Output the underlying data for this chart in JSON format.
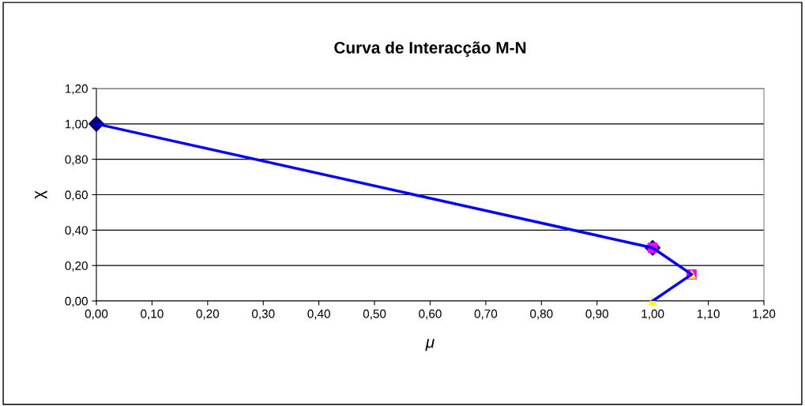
{
  "chart_data": {
    "type": "line",
    "title": "Curva de Interacção M-N",
    "xlabel": "μ",
    "ylabel": "χ",
    "xlim": [
      0,
      1.2
    ],
    "ylim": [
      0,
      1.2
    ],
    "xticks": [
      {
        "value": 0,
        "label": "0,00"
      },
      {
        "value": 0.1,
        "label": "0,10"
      },
      {
        "value": 0.2,
        "label": "0,20"
      },
      {
        "value": 0.3,
        "label": "0,30"
      },
      {
        "value": 0.4,
        "label": "0,40"
      },
      {
        "value": 0.5,
        "label": "0,50"
      },
      {
        "value": 0.6,
        "label": "0,60"
      },
      {
        "value": 0.7,
        "label": "0,70"
      },
      {
        "value": 0.8,
        "label": "0,80"
      },
      {
        "value": 0.9,
        "label": "0,90"
      },
      {
        "value": 1.0,
        "label": "1,00"
      },
      {
        "value": 1.1,
        "label": "1,10"
      },
      {
        "value": 1.2,
        "label": "1,20"
      }
    ],
    "yticks": [
      {
        "value": 0,
        "label": "0,00"
      },
      {
        "value": 0.2,
        "label": "0,20"
      },
      {
        "value": 0.4,
        "label": "0,40"
      },
      {
        "value": 0.6,
        "label": "0,60"
      },
      {
        "value": 0.8,
        "label": "0,80"
      },
      {
        "value": 1.0,
        "label": "1,00"
      },
      {
        "value": 1.2,
        "label": "1,20"
      }
    ],
    "grid": "y",
    "legend": false,
    "series": [
      {
        "type": "scatter",
        "marker": "diamond",
        "color": "#000080",
        "x": [
          0,
          1.0
        ],
        "values": [
          1.0,
          0.3
        ]
      },
      {
        "type": "scatter",
        "marker": "square",
        "color": "#ff00ff",
        "x": [
          1.0,
          1.07
        ],
        "values": [
          0.3,
          0.15
        ]
      },
      {
        "type": "scatter",
        "marker": "triangle",
        "color": "#ffff00",
        "x": [
          1.07,
          1.0
        ],
        "values": [
          0.15,
          0.0
        ]
      },
      {
        "marker": "none",
        "color": "#0000ff",
        "x": [
          0,
          1.0,
          1.07,
          1.0
        ],
        "values": [
          1.0,
          0.3,
          0.15,
          0.0
        ]
      }
    ]
  }
}
